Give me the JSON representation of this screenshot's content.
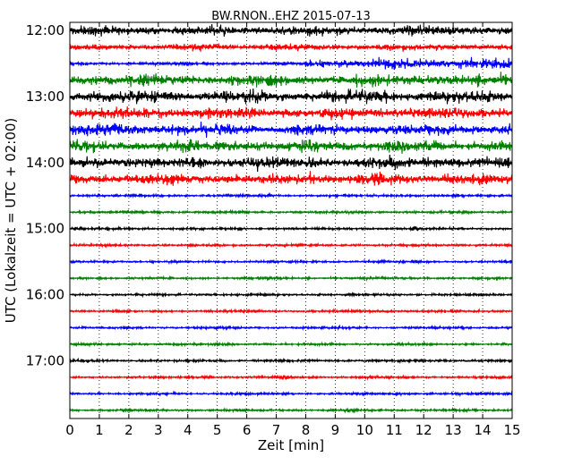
{
  "chart_data": {
    "type": "line",
    "title": "BW.RNON..EHZ 2015-07-13",
    "xlabel": "Zeit  [min]",
    "ylabel": "UTC (Lokalzeit = UTC + 02:00)",
    "xlim": [
      0,
      15
    ],
    "x_ticks": [
      "0",
      "1",
      "2",
      "3",
      "4",
      "5",
      "6",
      "7",
      "8",
      "9",
      "10",
      "11",
      "12",
      "13",
      "14",
      "15"
    ],
    "y_ticks": [
      {
        "label": "12:00",
        "minutes": 0
      },
      {
        "label": "13:00",
        "minutes": 60
      },
      {
        "label": "14:00",
        "minutes": 120
      },
      {
        "label": "15:00",
        "minutes": 180
      },
      {
        "label": "16:00",
        "minutes": 240
      },
      {
        "label": "17:00",
        "minutes": 300
      }
    ],
    "ylim_minutes": [
      -7.5,
      352.5
    ],
    "grid": "vertical dotted",
    "trace_colors": [
      "#000000",
      "#ff0000",
      "#0000ff",
      "#008000"
    ],
    "traces": [
      {
        "start": "12:00",
        "color": "#000000",
        "amp": 0.45,
        "events": [
          {
            "t": 11.15,
            "amp": 0.65
          }
        ]
      },
      {
        "start": "12:15",
        "color": "#ff0000",
        "amp": 0.3,
        "events": []
      },
      {
        "start": "12:30",
        "color": "#0000ff",
        "amp": 0.15,
        "step_at": 8.0,
        "amp_after": 0.5,
        "events": []
      },
      {
        "start": "12:45",
        "color": "#008000",
        "amp": 0.55,
        "events": [
          {
            "t": 3.3,
            "amp": 0.7
          }
        ]
      },
      {
        "start": "13:00",
        "color": "#000000",
        "amp": 0.6,
        "events": []
      },
      {
        "start": "13:15",
        "color": "#ff0000",
        "amp": 0.55,
        "events": []
      },
      {
        "start": "13:30",
        "color": "#0000ff",
        "amp": 0.55,
        "events": []
      },
      {
        "start": "13:45",
        "color": "#008000",
        "amp": 0.55,
        "events": []
      },
      {
        "start": "14:00",
        "color": "#000000",
        "amp": 0.55,
        "events": [
          {
            "t": 6.3,
            "amp": 0.75
          }
        ]
      },
      {
        "start": "14:15",
        "color": "#ff0000",
        "amp": 0.5,
        "events": [
          {
            "t": 8.15,
            "amp": 0.95
          }
        ]
      },
      {
        "start": "14:30",
        "color": "#0000ff",
        "amp": 0.13,
        "events": []
      },
      {
        "start": "14:45",
        "color": "#008000",
        "amp": 0.13,
        "events": []
      },
      {
        "start": "15:00",
        "color": "#000000",
        "amp": 0.12,
        "events": [
          {
            "t": 11.65,
            "amp": 0.35
          }
        ]
      },
      {
        "start": "15:15",
        "color": "#ff0000",
        "amp": 0.12,
        "events": []
      },
      {
        "start": "15:30",
        "color": "#0000ff",
        "amp": 0.12,
        "events": []
      },
      {
        "start": "15:45",
        "color": "#008000",
        "amp": 0.12,
        "events": []
      },
      {
        "start": "16:00",
        "color": "#000000",
        "amp": 0.12,
        "events": []
      },
      {
        "start": "16:15",
        "color": "#ff0000",
        "amp": 0.12,
        "events": []
      },
      {
        "start": "16:30",
        "color": "#0000ff",
        "amp": 0.12,
        "events": []
      },
      {
        "start": "16:45",
        "color": "#008000",
        "amp": 0.12,
        "events": []
      },
      {
        "start": "17:00",
        "color": "#000000",
        "amp": 0.12,
        "events": []
      },
      {
        "start": "17:15",
        "color": "#ff0000",
        "amp": 0.12,
        "events": [
          {
            "t": 7.25,
            "amp": 0.3
          }
        ]
      },
      {
        "start": "17:30",
        "color": "#0000ff",
        "amp": 0.12,
        "events": [
          {
            "t": 14.8,
            "amp": 0.25
          }
        ]
      },
      {
        "start": "17:45",
        "color": "#008000",
        "amp": 0.12,
        "events": []
      }
    ]
  }
}
